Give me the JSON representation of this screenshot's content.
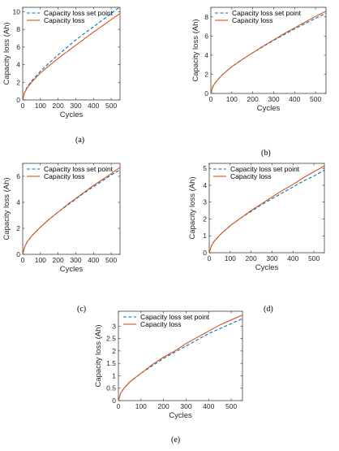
{
  "chart_data": [
    {
      "label": "(a)",
      "type": "line",
      "xlabel": "Cycles",
      "ylabel": "Capacity loss (Ah)",
      "xlim": [
        0,
        550
      ],
      "ylim": [
        0,
        10.5
      ],
      "xticks": [
        0,
        100,
        200,
        300,
        400,
        500
      ],
      "yticks": [
        0,
        2,
        4,
        6,
        8,
        10
      ],
      "legend_position": "top-left",
      "series": [
        {
          "name": "Capacity loss set point",
          "style": "dashed",
          "color": "#0072BD",
          "x": [
            0,
            10,
            25,
            50,
            100,
            150,
            200,
            250,
            300,
            350,
            400,
            450,
            500,
            550
          ],
          "y": [
            0,
            0.85,
            1.45,
            2.15,
            3.25,
            4.2,
            5.1,
            5.95,
            6.8,
            7.55,
            8.3,
            9.05,
            9.8,
            10.55
          ]
        },
        {
          "name": "Capacity loss",
          "style": "solid",
          "color": "#D95319",
          "x": [
            0,
            10,
            25,
            50,
            100,
            150,
            200,
            250,
            300,
            350,
            400,
            450,
            500,
            550
          ],
          "y": [
            0,
            0.8,
            1.35,
            2.0,
            3.05,
            3.9,
            4.7,
            5.45,
            6.2,
            6.95,
            7.7,
            8.4,
            9.1,
            9.8
          ]
        }
      ]
    },
    {
      "label": "(b)",
      "type": "line",
      "xlabel": "Cycles",
      "ylabel": "Capacity loss (Ah)",
      "xlim": [
        0,
        550
      ],
      "ylim": [
        0,
        9
      ],
      "xticks": [
        0,
        100,
        200,
        300,
        400,
        500
      ],
      "yticks": [
        0,
        2,
        4,
        6,
        8
      ],
      "legend_position": "top-left",
      "series": [
        {
          "name": "Capacity loss set point",
          "style": "dashed",
          "color": "#0072BD",
          "x": [
            0,
            10,
            25,
            50,
            100,
            150,
            200,
            250,
            300,
            350,
            400,
            450,
            500,
            550
          ],
          "y": [
            0,
            0.75,
            1.25,
            1.85,
            2.8,
            3.55,
            4.25,
            4.9,
            5.55,
            6.15,
            6.75,
            7.3,
            7.85,
            8.4
          ]
        },
        {
          "name": "Capacity loss",
          "style": "solid",
          "color": "#D95319",
          "x": [
            0,
            10,
            25,
            50,
            100,
            150,
            200,
            250,
            300,
            350,
            400,
            450,
            500,
            550
          ],
          "y": [
            0,
            0.75,
            1.25,
            1.85,
            2.8,
            3.55,
            4.25,
            4.95,
            5.6,
            6.25,
            6.85,
            7.45,
            8.05,
            8.6
          ]
        }
      ]
    },
    {
      "label": "(c)",
      "type": "line",
      "xlabel": "Cycles",
      "ylabel": "Capacity loss (Ah)",
      "xlim": [
        0,
        550
      ],
      "ylim": [
        0,
        7
      ],
      "xticks": [
        0,
        100,
        200,
        300,
        400,
        500
      ],
      "yticks": [
        0,
        2,
        4,
        6
      ],
      "legend_position": "top-left",
      "series": [
        {
          "name": "Capacity loss set point",
          "style": "dashed",
          "color": "#0072BD",
          "x": [
            0,
            10,
            25,
            50,
            100,
            150,
            200,
            250,
            300,
            350,
            400,
            450,
            500,
            550
          ],
          "y": [
            0,
            0.55,
            0.95,
            1.4,
            2.1,
            2.7,
            3.25,
            3.75,
            4.25,
            4.75,
            5.2,
            5.65,
            6.1,
            6.5
          ]
        },
        {
          "name": "Capacity loss",
          "style": "solid",
          "color": "#D95319",
          "x": [
            0,
            10,
            25,
            50,
            100,
            150,
            200,
            250,
            300,
            350,
            400,
            450,
            500,
            550
          ],
          "y": [
            0,
            0.55,
            0.95,
            1.4,
            2.1,
            2.7,
            3.25,
            3.8,
            4.3,
            4.8,
            5.3,
            5.75,
            6.2,
            6.7
          ]
        }
      ]
    },
    {
      "label": "(d)",
      "type": "line",
      "xlabel": "Cycles",
      "ylabel": "Capacity loss (Ah)",
      "xlim": [
        0,
        550
      ],
      "ylim": [
        0,
        5.3
      ],
      "xticks": [
        0,
        100,
        200,
        300,
        400,
        500
      ],
      "yticks": [
        0,
        1,
        2,
        3,
        4,
        5
      ],
      "legend_position": "top-left",
      "series": [
        {
          "name": "Capacity loss set point",
          "style": "dashed",
          "color": "#0072BD",
          "x": [
            0,
            10,
            25,
            50,
            100,
            150,
            200,
            250,
            300,
            350,
            400,
            450,
            500,
            550
          ],
          "y": [
            0,
            0.4,
            0.7,
            1.05,
            1.6,
            2.05,
            2.45,
            2.85,
            3.2,
            3.55,
            3.9,
            4.25,
            4.55,
            4.9
          ]
        },
        {
          "name": "Capacity loss",
          "style": "solid",
          "color": "#D95319",
          "x": [
            0,
            10,
            25,
            50,
            100,
            150,
            200,
            250,
            300,
            350,
            400,
            450,
            500,
            550
          ],
          "y": [
            0,
            0.4,
            0.7,
            1.05,
            1.6,
            2.05,
            2.5,
            2.9,
            3.3,
            3.7,
            4.05,
            4.45,
            4.8,
            5.15
          ]
        }
      ]
    },
    {
      "label": "(e)",
      "type": "line",
      "xlabel": "Cycles",
      "ylabel": "Capacity loss (Ah)",
      "xlim": [
        0,
        550
      ],
      "ylim": [
        0,
        3.6
      ],
      "xticks": [
        0,
        100,
        200,
        300,
        400,
        500
      ],
      "yticks": [
        0,
        0.5,
        1,
        1.5,
        2,
        2.5,
        3
      ],
      "legend_position": "top-left",
      "series": [
        {
          "name": "Capacity loss set point",
          "style": "dashed",
          "color": "#0072BD",
          "x": [
            0,
            10,
            25,
            50,
            100,
            150,
            200,
            250,
            300,
            350,
            400,
            450,
            500,
            550
          ],
          "y": [
            0,
            0.3,
            0.5,
            0.75,
            1.1,
            1.4,
            1.7,
            1.95,
            2.2,
            2.45,
            2.7,
            2.9,
            3.1,
            3.3
          ]
        },
        {
          "name": "Capacity loss",
          "style": "solid",
          "color": "#D95319",
          "x": [
            0,
            10,
            25,
            50,
            100,
            150,
            200,
            250,
            300,
            350,
            400,
            450,
            500,
            550
          ],
          "y": [
            0,
            0.3,
            0.5,
            0.75,
            1.1,
            1.45,
            1.75,
            2.0,
            2.3,
            2.55,
            2.8,
            3.05,
            3.25,
            3.45
          ]
        }
      ]
    }
  ]
}
